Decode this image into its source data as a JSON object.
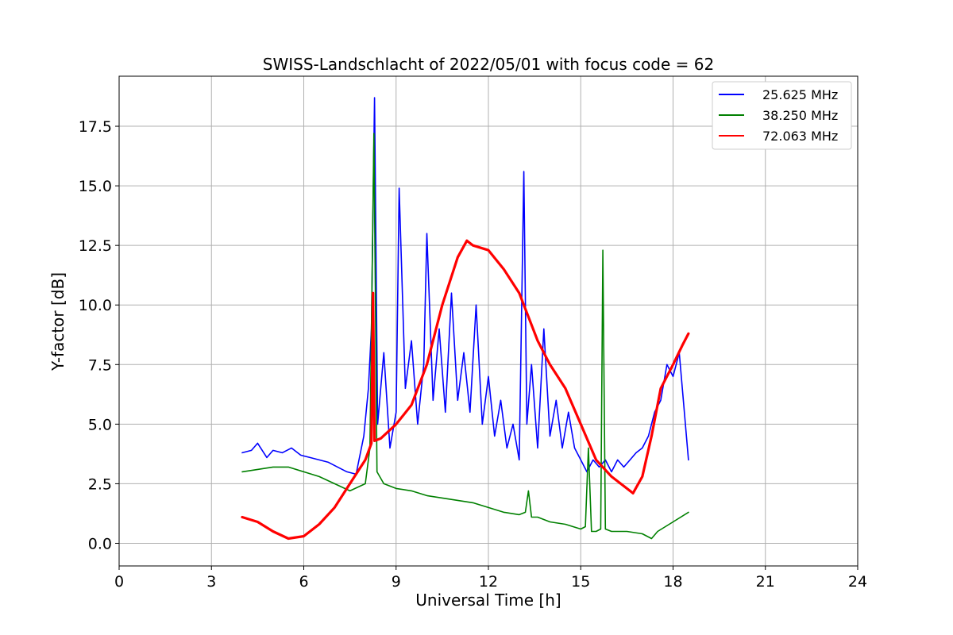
{
  "chart_data": {
    "type": "line",
    "title": "SWISS-Landschlacht of 2022/05/01 with focus code = 62",
    "xlabel": "Universal Time [h]",
    "ylabel": "Y-factor [dB]",
    "xlim": [
      0,
      24
    ],
    "ylim": [
      -0.95,
      19.6
    ],
    "xticks": [
      0,
      3,
      6,
      9,
      12,
      15,
      18,
      21,
      24
    ],
    "xtick_labels": [
      "0",
      "3",
      "6",
      "9",
      "12",
      "15",
      "18",
      "21",
      "24"
    ],
    "yticks": [
      0,
      2.5,
      5,
      7.5,
      10,
      12.5,
      15,
      17.5
    ],
    "ytick_labels": [
      "0.0",
      "2.5",
      "5.0",
      "7.5",
      "10.0",
      "12.5",
      "15.0",
      "17.5"
    ],
    "grid": true,
    "legend_position": "top-right",
    "series": [
      {
        "name": "25.625 MHz",
        "color": "#0000ff",
        "x": [
          4.0,
          4.3,
          4.5,
          4.8,
          5.0,
          5.3,
          5.6,
          5.9,
          6.2,
          6.5,
          6.8,
          7.1,
          7.4,
          7.7,
          7.95,
          8.1,
          8.2,
          8.3,
          8.4,
          8.6,
          8.8,
          9.0,
          9.1,
          9.3,
          9.5,
          9.7,
          9.9,
          10.0,
          10.2,
          10.4,
          10.6,
          10.8,
          11.0,
          11.2,
          11.4,
          11.6,
          11.8,
          12.0,
          12.2,
          12.4,
          12.6,
          12.8,
          13.0,
          13.15,
          13.25,
          13.4,
          13.6,
          13.8,
          14.0,
          14.2,
          14.4,
          14.6,
          14.8,
          15.0,
          15.2,
          15.4,
          15.6,
          15.8,
          16.0,
          16.2,
          16.4,
          16.6,
          16.8,
          17.0,
          17.2,
          17.4,
          17.6,
          17.8,
          18.0,
          18.2,
          18.5
        ],
        "y": [
          3.8,
          3.9,
          4.2,
          3.6,
          3.9,
          3.8,
          4.0,
          3.7,
          3.6,
          3.5,
          3.4,
          3.2,
          3.0,
          2.9,
          4.5,
          6.5,
          9.0,
          18.7,
          5.0,
          8.0,
          4.0,
          5.5,
          14.9,
          6.5,
          8.5,
          5.0,
          7.5,
          13.0,
          6.0,
          9.0,
          5.5,
          10.5,
          6.0,
          8.0,
          5.5,
          10.0,
          5.0,
          7.0,
          4.5,
          6.0,
          4.0,
          5.0,
          3.5,
          15.6,
          5.0,
          7.5,
          4.0,
          9.0,
          4.5,
          6.0,
          4.0,
          5.5,
          4.0,
          3.5,
          3.0,
          3.5,
          3.2,
          3.5,
          3.0,
          3.5,
          3.2,
          3.5,
          3.8,
          4.0,
          4.5,
          5.5,
          6.0,
          7.5,
          7.0,
          8.0,
          3.5
        ]
      },
      {
        "name": "38.250 MHz",
        "color": "#008000",
        "x": [
          4.0,
          4.5,
          5.0,
          5.5,
          6.0,
          6.5,
          7.0,
          7.5,
          8.0,
          8.15,
          8.28,
          8.38,
          8.6,
          9.0,
          9.5,
          10.0,
          10.5,
          11.0,
          11.5,
          12.0,
          12.5,
          13.0,
          13.2,
          13.3,
          13.4,
          13.6,
          14.0,
          14.5,
          15.0,
          15.15,
          15.25,
          15.35,
          15.5,
          15.65,
          15.72,
          15.8,
          16.0,
          16.5,
          17.0,
          17.3,
          17.5,
          18.0,
          18.5
        ],
        "y": [
          3.0,
          3.1,
          3.2,
          3.2,
          3.0,
          2.8,
          2.5,
          2.2,
          2.5,
          4.0,
          17.2,
          3.0,
          2.5,
          2.3,
          2.2,
          2.0,
          1.9,
          1.8,
          1.7,
          1.5,
          1.3,
          1.2,
          1.3,
          2.2,
          1.1,
          1.1,
          0.9,
          0.8,
          0.6,
          0.7,
          4.0,
          0.5,
          0.5,
          0.6,
          12.3,
          0.6,
          0.5,
          0.5,
          0.4,
          0.2,
          0.5,
          0.9,
          1.3
        ]
      },
      {
        "name": "72.063 MHz",
        "color": "#ff0000",
        "x": [
          4.0,
          4.5,
          5.0,
          5.5,
          6.0,
          6.2,
          6.5,
          7.0,
          7.5,
          8.0,
          8.2,
          8.25,
          8.3,
          8.5,
          9.0,
          9.5,
          10.0,
          10.5,
          11.0,
          11.3,
          11.5,
          12.0,
          12.5,
          13.0,
          13.3,
          13.6,
          14.0,
          14.5,
          15.0,
          15.5,
          16.0,
          16.5,
          16.7,
          17.0,
          17.3,
          17.6,
          18.0,
          18.3,
          18.5
        ],
        "y": [
          1.1,
          0.9,
          0.5,
          0.2,
          0.3,
          0.5,
          0.8,
          1.5,
          2.5,
          3.5,
          4.2,
          10.5,
          4.3,
          4.4,
          5.0,
          5.8,
          7.5,
          10.0,
          12.0,
          12.7,
          12.5,
          12.3,
          11.5,
          10.5,
          9.5,
          8.5,
          7.5,
          6.5,
          5.0,
          3.5,
          2.8,
          2.3,
          2.1,
          2.8,
          4.5,
          6.5,
          7.5,
          8.3,
          8.8
        ]
      }
    ]
  }
}
